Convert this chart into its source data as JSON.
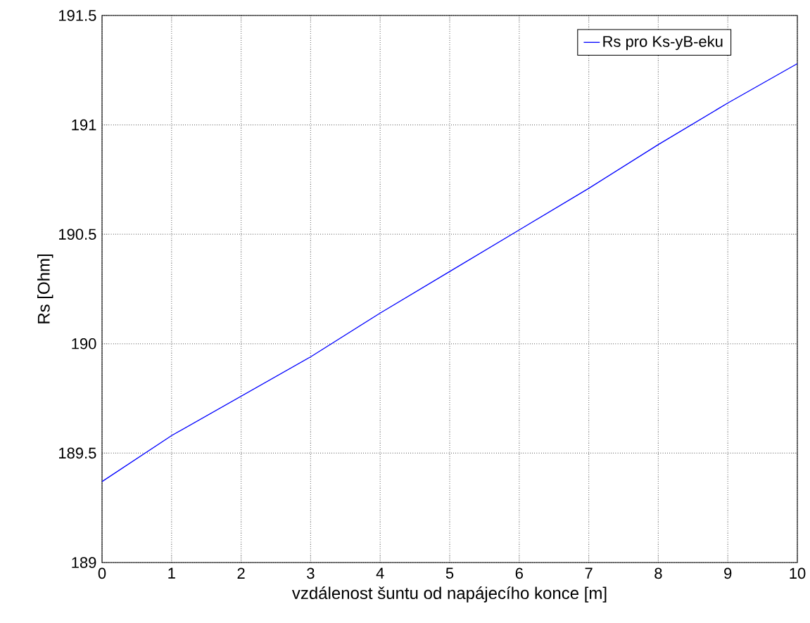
{
  "chart_data": {
    "type": "line",
    "xlabel": "vzdálenost šuntu od napájecího konce [m]",
    "ylabel": "Rs [Ohm]",
    "x": [
      0,
      1,
      2,
      3,
      4,
      5,
      6,
      7,
      8,
      9,
      10
    ],
    "series": [
      {
        "name": "Rs pro Ks-yB-eku",
        "color": "#0000ff",
        "values": [
          189.37,
          189.58,
          189.76,
          189.94,
          190.14,
          190.33,
          190.52,
          190.71,
          190.91,
          191.1,
          191.28
        ]
      }
    ],
    "xlim": [
      0,
      10
    ],
    "ylim": [
      189,
      191.5
    ],
    "xticks": [
      0,
      1,
      2,
      3,
      4,
      5,
      6,
      7,
      8,
      9,
      10
    ],
    "yticks": [
      189,
      189.5,
      190,
      190.5,
      191,
      191.5
    ],
    "grid": true,
    "legend": "top right",
    "marker": "none",
    "line_style": "solid"
  }
}
